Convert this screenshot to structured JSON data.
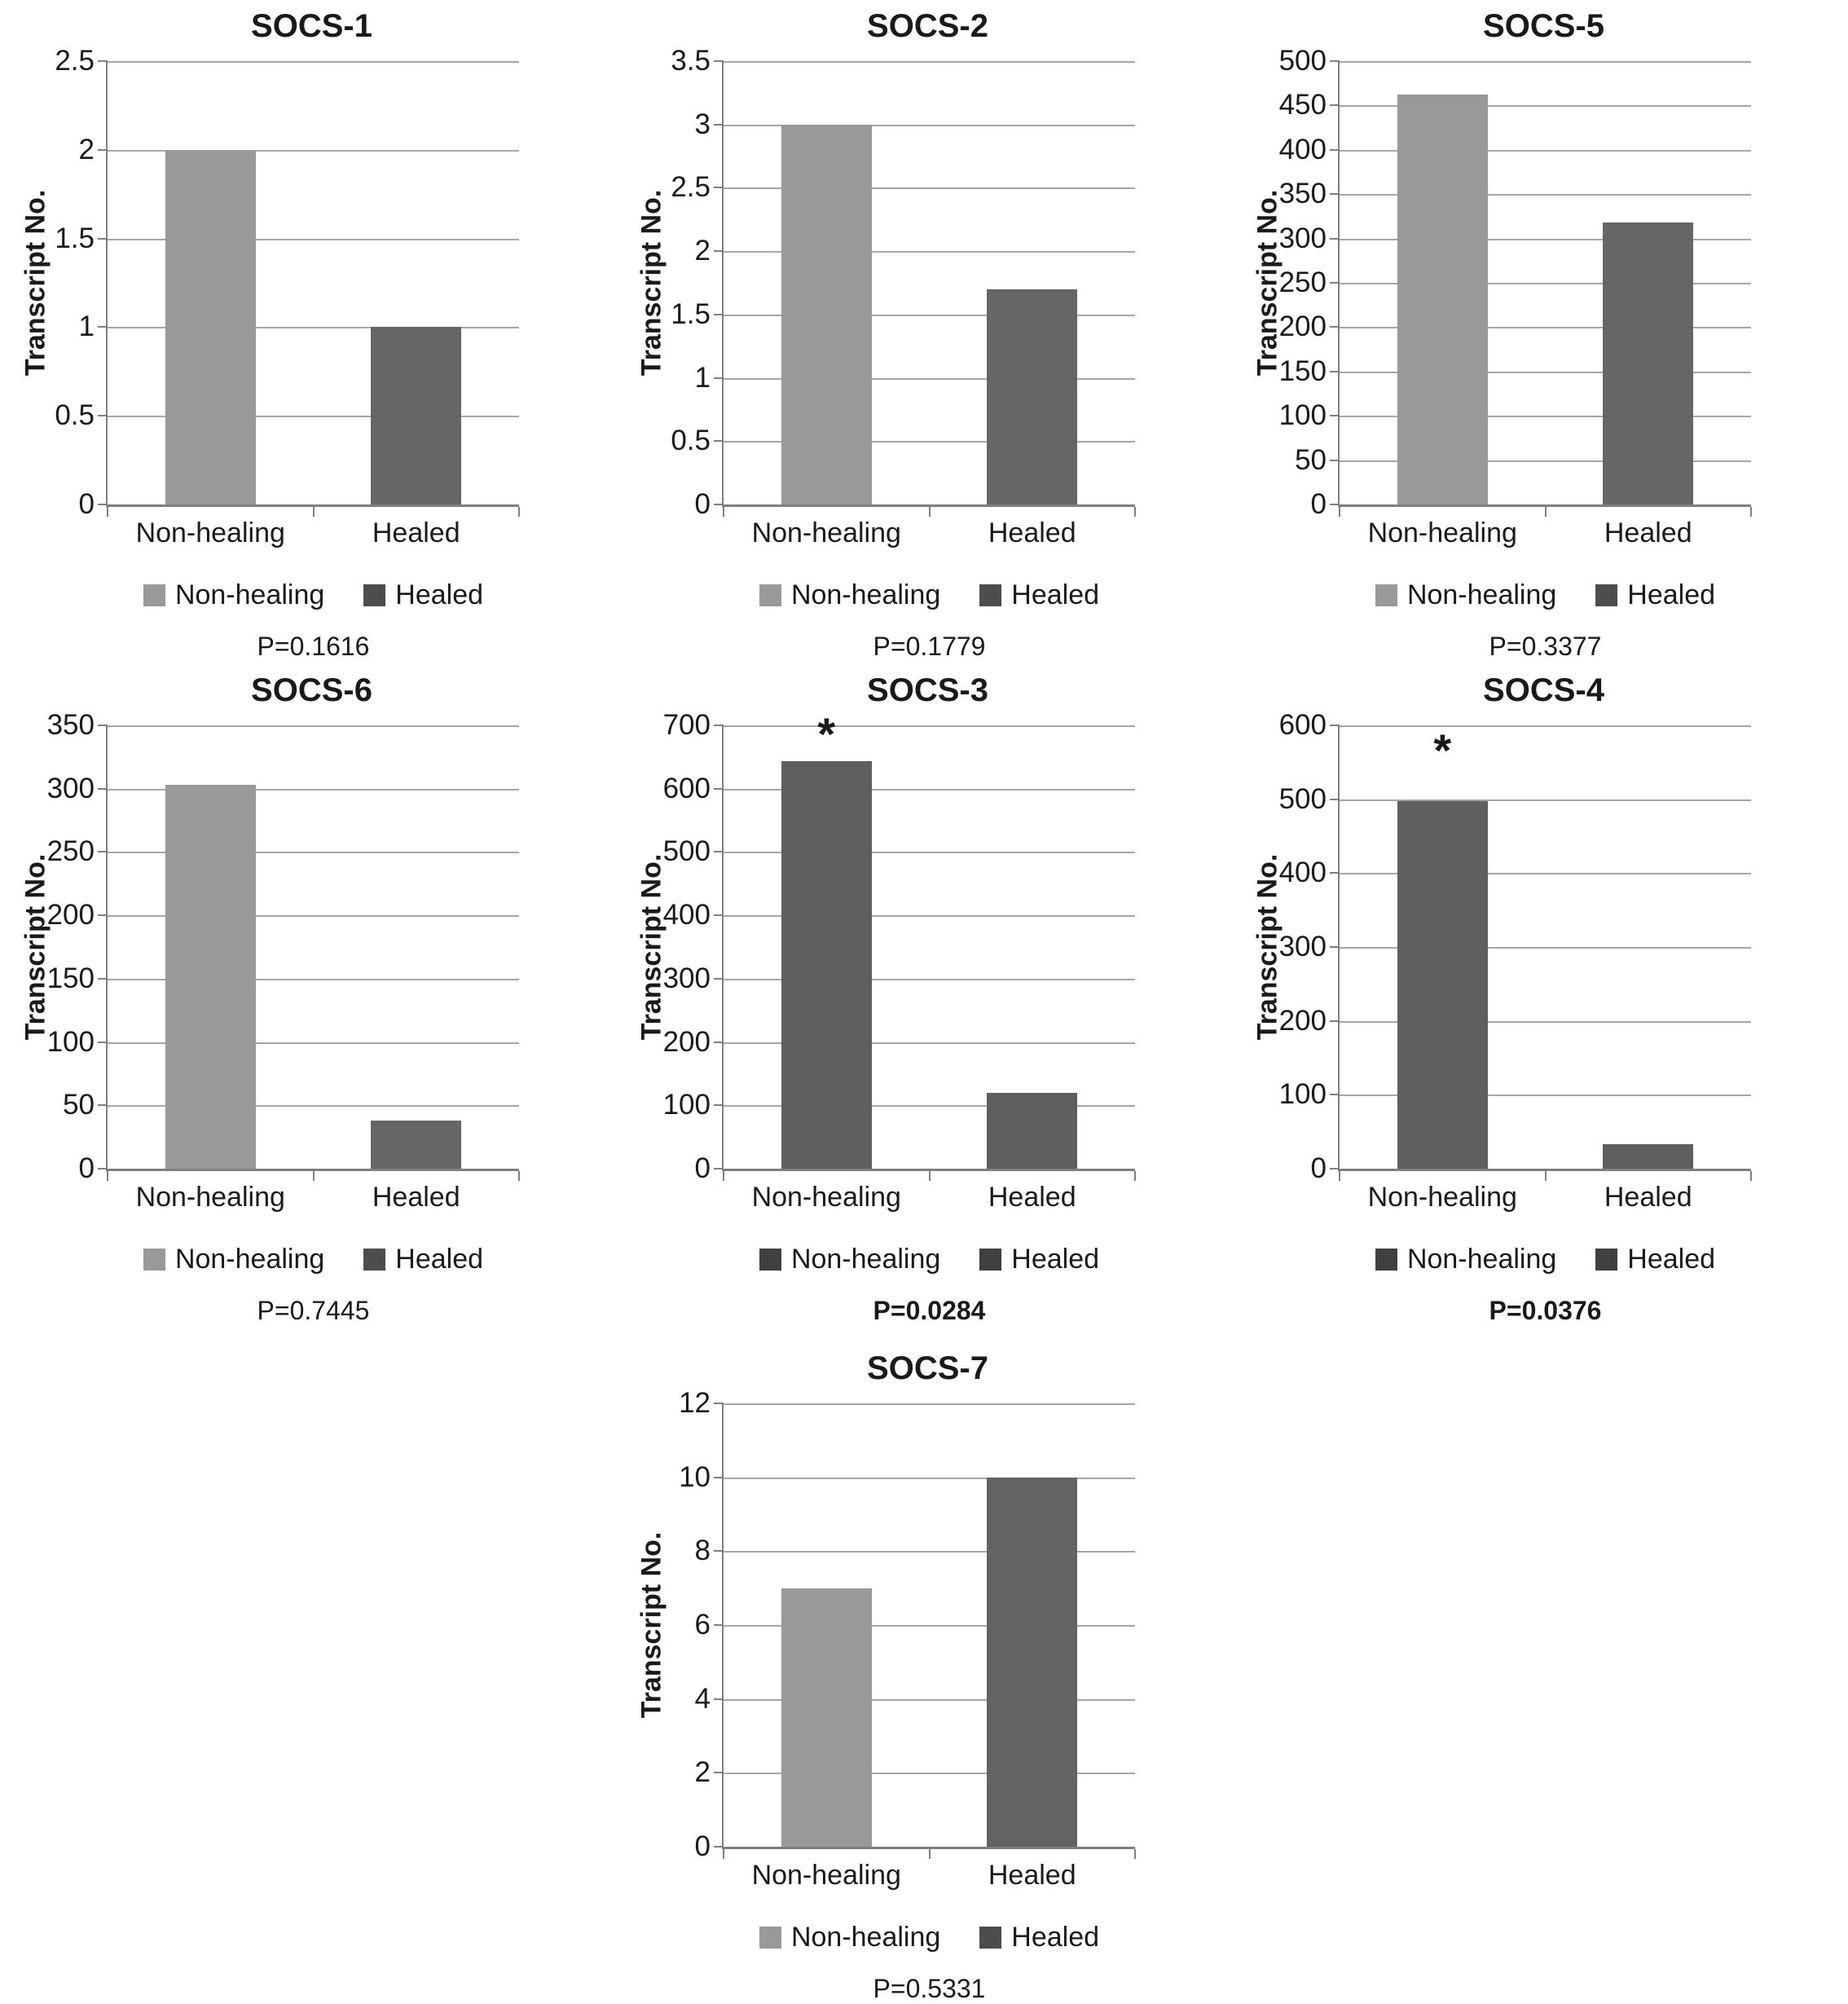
{
  "figure": {
    "background": "#ffffff",
    "grid_color": "#a6a6a6",
    "axis_color": "#7f7f7f",
    "light_bar_color": "#999999",
    "dark_bar_color": "#666666"
  },
  "chart_data": [
    {
      "type": "bar",
      "title": "SOCS-1",
      "ylabel": "Transcript No.",
      "categories": [
        "Non-healing",
        "Healed"
      ],
      "values": [
        2,
        1
      ],
      "bar_colors": [
        "#999999",
        "#666666"
      ],
      "ylim": [
        0,
        2.5
      ],
      "yticks": [
        0,
        0.5,
        1,
        1.5,
        2,
        2.5
      ],
      "ytick_labels": [
        "0",
        "0.5",
        "1",
        "1.5",
        "2",
        "2.5"
      ],
      "grid": true,
      "legend": {
        "position": "bottom",
        "items": [
          {
            "label": "Non-healing",
            "color": "#999999"
          },
          {
            "label": "Healed",
            "color": "#4d4d4d"
          }
        ]
      },
      "p_value": "P=0.1616",
      "p_bold": false,
      "annotations": []
    },
    {
      "type": "bar",
      "title": "SOCS-2",
      "ylabel": "Transcript No.",
      "categories": [
        "Non-healing",
        "Healed"
      ],
      "values": [
        3,
        1.7
      ],
      "bar_colors": [
        "#999999",
        "#666666"
      ],
      "ylim": [
        0,
        3.5
      ],
      "yticks": [
        0,
        0.5,
        1,
        1.5,
        2,
        2.5,
        3,
        3.5
      ],
      "ytick_labels": [
        "0",
        "0.5",
        "1",
        "1.5",
        "2",
        "2.5",
        "3",
        "3.5"
      ],
      "grid": true,
      "legend": {
        "position": "bottom",
        "items": [
          {
            "label": "Non-healing",
            "color": "#999999"
          },
          {
            "label": "Healed",
            "color": "#4d4d4d"
          }
        ]
      },
      "p_value": "P=0.1779",
      "p_bold": false,
      "annotations": []
    },
    {
      "type": "bar",
      "title": "SOCS-5",
      "ylabel": "Transcript No.",
      "categories": [
        "Non-healing",
        "Healed"
      ],
      "values": [
        462,
        318
      ],
      "bar_colors": [
        "#999999",
        "#666666"
      ],
      "ylim": [
        0,
        500
      ],
      "yticks": [
        0,
        50,
        100,
        150,
        200,
        250,
        300,
        350,
        400,
        450,
        500
      ],
      "ytick_labels": [
        "0",
        "50",
        "100",
        "150",
        "200",
        "250",
        "300",
        "350",
        "400",
        "450",
        "500"
      ],
      "grid": true,
      "legend": {
        "position": "bottom",
        "items": [
          {
            "label": "Non-healing",
            "color": "#999999"
          },
          {
            "label": "Healed",
            "color": "#4d4d4d"
          }
        ]
      },
      "p_value": "P=0.3377",
      "p_bold": false,
      "annotations": []
    },
    {
      "type": "bar",
      "title": "SOCS-6",
      "ylabel": "Transcript No.",
      "categories": [
        "Non-healing",
        "Healed"
      ],
      "values": [
        303,
        38
      ],
      "bar_colors": [
        "#999999",
        "#666666"
      ],
      "ylim": [
        0,
        350
      ],
      "yticks": [
        0,
        50,
        100,
        150,
        200,
        250,
        300,
        350
      ],
      "ytick_labels": [
        "0",
        "50",
        "100",
        "150",
        "200",
        "250",
        "300",
        "350"
      ],
      "grid": true,
      "legend": {
        "position": "bottom",
        "items": [
          {
            "label": "Non-healing",
            "color": "#999999"
          },
          {
            "label": "Healed",
            "color": "#4d4d4d"
          }
        ]
      },
      "p_value": "P=0.7445",
      "p_bold": false,
      "annotations": []
    },
    {
      "type": "bar",
      "title": "SOCS-3",
      "ylabel": "Transcript No.",
      "categories": [
        "Non-healing",
        "Healed"
      ],
      "values": [
        643,
        120
      ],
      "bar_colors": [
        "#5f5f5f",
        "#5f5f5f"
      ],
      "ylim": [
        0,
        700
      ],
      "yticks": [
        0,
        100,
        200,
        300,
        400,
        500,
        600,
        700
      ],
      "ytick_labels": [
        "0",
        "100",
        "200",
        "300",
        "400",
        "500",
        "600",
        "700"
      ],
      "grid": true,
      "legend": {
        "position": "bottom",
        "items": [
          {
            "label": "Non-healing",
            "color": "#404040"
          },
          {
            "label": "Healed",
            "color": "#404040"
          }
        ]
      },
      "p_value": "P=0.0284",
      "p_bold": true,
      "annotations": [
        {
          "text": "*",
          "category_index": 0,
          "y_value": 650
        }
      ]
    },
    {
      "type": "bar",
      "title": "SOCS-4",
      "ylabel": "Transcript No.",
      "categories": [
        "Non-healing",
        "Healed"
      ],
      "values": [
        497,
        33
      ],
      "bar_colors": [
        "#5f5f5f",
        "#5f5f5f"
      ],
      "ylim": [
        0,
        600
      ],
      "yticks": [
        0,
        100,
        200,
        300,
        400,
        500,
        600
      ],
      "ytick_labels": [
        "0",
        "100",
        "200",
        "300",
        "400",
        "500",
        "600"
      ],
      "grid": true,
      "legend": {
        "position": "bottom",
        "items": [
          {
            "label": "Non-healing",
            "color": "#404040"
          },
          {
            "label": "Healed",
            "color": "#404040"
          }
        ]
      },
      "p_value": "P=0.0376",
      "p_bold": true,
      "annotations": [
        {
          "text": "*",
          "category_index": 0,
          "y_value": 535
        }
      ]
    },
    {
      "type": "bar",
      "title": "SOCS-7",
      "ylabel": "Transcript No.",
      "categories": [
        "Non-healing",
        "Healed"
      ],
      "values": [
        7,
        10
      ],
      "bar_colors": [
        "#999999",
        "#636363"
      ],
      "ylim": [
        0,
        12
      ],
      "yticks": [
        0,
        2,
        4,
        6,
        8,
        10,
        12
      ],
      "ytick_labels": [
        "0",
        "2",
        "4",
        "6",
        "8",
        "10",
        "12"
      ],
      "grid": true,
      "legend": {
        "position": "bottom",
        "items": [
          {
            "label": "Non-healing",
            "color": "#999999"
          },
          {
            "label": "Healed",
            "color": "#4d4d4d"
          }
        ]
      },
      "p_value": "P=0.5331",
      "p_bold": false,
      "annotations": []
    }
  ]
}
